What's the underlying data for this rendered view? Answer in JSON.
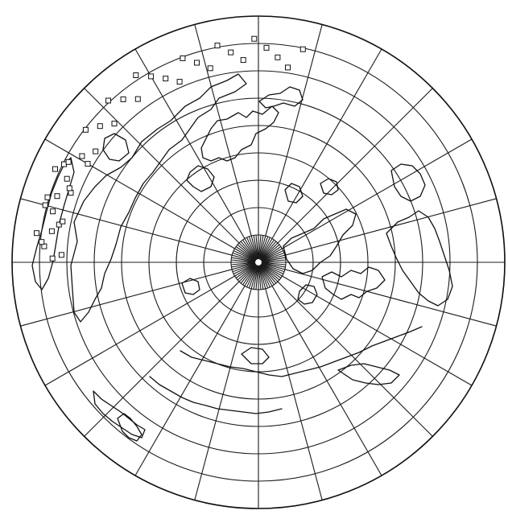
{
  "map": {
    "projection": "azimuthal-polar",
    "center": "north-pole",
    "colors": {
      "ink": "#111111",
      "background": "#ffffff"
    },
    "graticule": {
      "meridian_step_deg": 15,
      "latitude_circles_deg": [
        80,
        70,
        60,
        50,
        40,
        30,
        20,
        10,
        0
      ],
      "polar_cap_spoke_step_deg": 5
    },
    "markers": {
      "symbol": "small-square",
      "count": 42
    }
  }
}
